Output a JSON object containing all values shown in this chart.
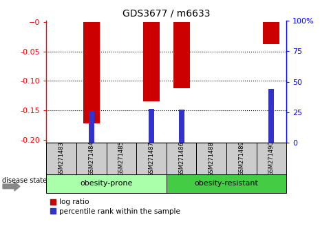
{
  "title": "GDS3677 / m6633",
  "categories": [
    "GSM271483",
    "GSM271484",
    "GSM271485",
    "GSM271487",
    "GSM271486",
    "GSM271488",
    "GSM271489",
    "GSM271490"
  ],
  "log_ratio": [
    0.0,
    -0.172,
    0.0,
    -0.135,
    -0.113,
    0.0,
    0.0,
    -0.038
  ],
  "percentile": [
    null,
    26.0,
    null,
    28.0,
    27.0,
    null,
    null,
    44.0
  ],
  "ylim_left": [
    -0.205,
    0.002
  ],
  "ylim_right": [
    0,
    100
  ],
  "yticks_left": [
    0,
    -0.05,
    -0.1,
    -0.15,
    -0.2
  ],
  "yticks_right": [
    0,
    25,
    50,
    75,
    100
  ],
  "bar_color_red": "#CC0000",
  "bar_color_blue": "#3333CC",
  "label_log_ratio": "log ratio",
  "label_percentile": "percentile rank within the sample",
  "disease_state_label": "disease state",
  "bar_width": 0.55,
  "percentile_marker_size": 6,
  "group_prone_color": "#AAFFAA",
  "group_resistant_color": "#44CC44"
}
